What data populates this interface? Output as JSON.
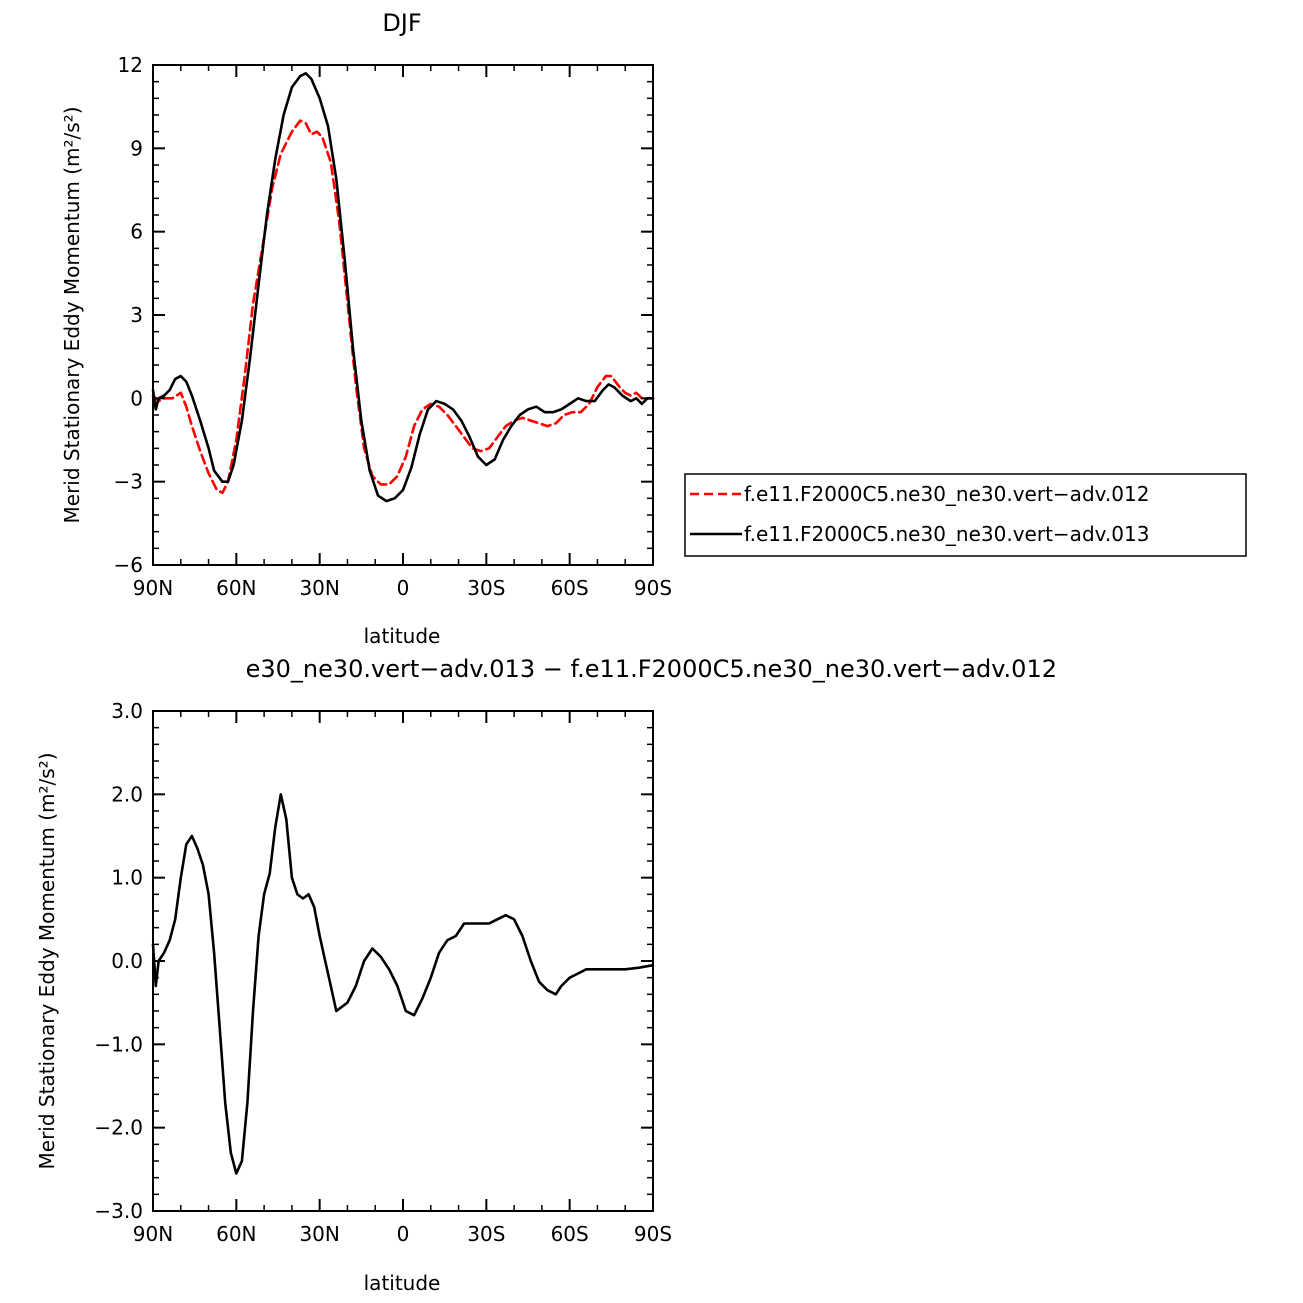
{
  "chart_data": [
    {
      "type": "line",
      "title": "DJF",
      "xlabel": "latitude",
      "ylabel": "Merid Stationary Eddy Momentum (m²/s²)",
      "xlim": [
        90,
        -90
      ],
      "ylim": [
        -6,
        12
      ],
      "x_ticks": [
        90,
        60,
        30,
        0,
        -30,
        -60,
        -90
      ],
      "x_tick_labels": [
        "90N",
        "60N",
        "30N",
        "0",
        "30S",
        "60S",
        "90S"
      ],
      "y_ticks": [
        -6,
        -3,
        0,
        3,
        6,
        9,
        12
      ],
      "y_tick_labels": [
        "−6",
        "−3",
        "0",
        "3",
        "6",
        "9",
        "12"
      ],
      "grid": false,
      "legend_position": "right",
      "series": [
        {
          "name": "f.e11.F2000C5.ne30_ne30.vert−adv.012",
          "color": "#ff0000",
          "dash": "dashed",
          "points": [
            [
              90,
              0.1
            ],
            [
              88,
              -0.1
            ],
            [
              86,
              0.0
            ],
            [
              83,
              0.0
            ],
            [
              80,
              0.2
            ],
            [
              78,
              -0.3
            ],
            [
              76,
              -1.0
            ],
            [
              73,
              -1.9
            ],
            [
              70,
              -2.7
            ],
            [
              67,
              -3.3
            ],
            [
              65,
              -3.4
            ],
            [
              63,
              -3.0
            ],
            [
              60,
              -1.5
            ],
            [
              57,
              0.8
            ],
            [
              54,
              3.4
            ],
            [
              50,
              5.8
            ],
            [
              47,
              7.6
            ],
            [
              44,
              8.8
            ],
            [
              40,
              9.6
            ],
            [
              37,
              10.0
            ],
            [
              35,
              9.9
            ],
            [
              33,
              9.5
            ],
            [
              31,
              9.6
            ],
            [
              29,
              9.4
            ],
            [
              26,
              8.5
            ],
            [
              23,
              6.4
            ],
            [
              20,
              3.5
            ],
            [
              17,
              0.5
            ],
            [
              14,
              -1.8
            ],
            [
              11,
              -2.8
            ],
            [
              8,
              -3.1
            ],
            [
              5,
              -3.1
            ],
            [
              2,
              -2.8
            ],
            [
              -1,
              -2.1
            ],
            [
              -4,
              -1.0
            ],
            [
              -7,
              -0.4
            ],
            [
              -10,
              -0.2
            ],
            [
              -13,
              -0.3
            ],
            [
              -16,
              -0.6
            ],
            [
              -19,
              -1.0
            ],
            [
              -22,
              -1.4
            ],
            [
              -25,
              -1.8
            ],
            [
              -28,
              -1.9
            ],
            [
              -31,
              -1.8
            ],
            [
              -34,
              -1.4
            ],
            [
              -37,
              -1.0
            ],
            [
              -40,
              -0.8
            ],
            [
              -43,
              -0.7
            ],
            [
              -46,
              -0.8
            ],
            [
              -49,
              -0.9
            ],
            [
              -52,
              -1.0
            ],
            [
              -55,
              -0.9
            ],
            [
              -58,
              -0.6
            ],
            [
              -61,
              -0.5
            ],
            [
              -64,
              -0.5
            ],
            [
              -67,
              -0.2
            ],
            [
              -70,
              0.4
            ],
            [
              -73,
              0.8
            ],
            [
              -75,
              0.8
            ],
            [
              -78,
              0.4
            ],
            [
              -80,
              0.2
            ],
            [
              -82,
              0.1
            ],
            [
              -84,
              0.2
            ],
            [
              -86,
              0.0
            ],
            [
              -88,
              0.0
            ],
            [
              -90,
              0.0
            ]
          ]
        },
        {
          "name": "f.e11.F2000C5.ne30_ne30.vert−adv.013",
          "color": "#000000",
          "dash": "solid",
          "points": [
            [
              90,
              0.3
            ],
            [
              89,
              -0.4
            ],
            [
              88,
              0.0
            ],
            [
              86,
              0.1
            ],
            [
              84,
              0.3
            ],
            [
              82,
              0.7
            ],
            [
              80,
              0.8
            ],
            [
              78,
              0.6
            ],
            [
              76,
              0.1
            ],
            [
              73,
              -0.8
            ],
            [
              70,
              -1.8
            ],
            [
              68,
              -2.6
            ],
            [
              65,
              -3.0
            ],
            [
              63,
              -3.0
            ],
            [
              61,
              -2.4
            ],
            [
              58,
              -0.8
            ],
            [
              55,
              1.5
            ],
            [
              52,
              4.1
            ],
            [
              49,
              6.6
            ],
            [
              46,
              8.6
            ],
            [
              43,
              10.2
            ],
            [
              40,
              11.2
            ],
            [
              37,
              11.6
            ],
            [
              35,
              11.7
            ],
            [
              33,
              11.5
            ],
            [
              30,
              10.8
            ],
            [
              27,
              9.8
            ],
            [
              24,
              7.9
            ],
            [
              21,
              5.0
            ],
            [
              18,
              1.8
            ],
            [
              15,
              -0.8
            ],
            [
              12,
              -2.6
            ],
            [
              9,
              -3.5
            ],
            [
              6,
              -3.7
            ],
            [
              3,
              -3.6
            ],
            [
              0,
              -3.3
            ],
            [
              -3,
              -2.5
            ],
            [
              -6,
              -1.3
            ],
            [
              -9,
              -0.4
            ],
            [
              -12,
              -0.1
            ],
            [
              -15,
              -0.2
            ],
            [
              -18,
              -0.4
            ],
            [
              -21,
              -0.8
            ],
            [
              -24,
              -1.4
            ],
            [
              -27,
              -2.1
            ],
            [
              -30,
              -2.4
            ],
            [
              -33,
              -2.2
            ],
            [
              -36,
              -1.5
            ],
            [
              -39,
              -1.0
            ],
            [
              -42,
              -0.6
            ],
            [
              -45,
              -0.4
            ],
            [
              -48,
              -0.3
            ],
            [
              -51,
              -0.5
            ],
            [
              -54,
              -0.5
            ],
            [
              -57,
              -0.4
            ],
            [
              -60,
              -0.2
            ],
            [
              -63,
              0.0
            ],
            [
              -66,
              -0.1
            ],
            [
              -69,
              -0.1
            ],
            [
              -72,
              0.3
            ],
            [
              -74,
              0.5
            ],
            [
              -76,
              0.4
            ],
            [
              -79,
              0.1
            ],
            [
              -82,
              -0.1
            ],
            [
              -84,
              0.0
            ],
            [
              -86,
              -0.2
            ],
            [
              -88,
              0.0
            ],
            [
              -90,
              0.0
            ]
          ]
        }
      ]
    },
    {
      "type": "line",
      "title": "e30_ne30.vert−adv.013 − f.e11.F2000C5.ne30_ne30.vert−adv.012",
      "xlabel": "latitude",
      "ylabel": "Merid Stationary Eddy Momentum (m²/s²)",
      "xlim": [
        90,
        -90
      ],
      "ylim": [
        -3,
        3
      ],
      "x_ticks": [
        90,
        60,
        30,
        0,
        -30,
        -60,
        -90
      ],
      "x_tick_labels": [
        "90N",
        "60N",
        "30N",
        "0",
        "30S",
        "60S",
        "90S"
      ],
      "y_ticks": [
        -3,
        -2,
        -1,
        0,
        1,
        2,
        3
      ],
      "y_tick_labels": [
        "−3.0",
        "−2.0",
        "−1.0",
        "0.0",
        "1.0",
        "2.0",
        "3.0"
      ],
      "grid": false,
      "series": [
        {
          "color": "#000000",
          "dash": "solid",
          "points": [
            [
              90,
              0.2
            ],
            [
              89,
              -0.3
            ],
            [
              88,
              0.0
            ],
            [
              86,
              0.1
            ],
            [
              84,
              0.25
            ],
            [
              82,
              0.5
            ],
            [
              80,
              1.0
            ],
            [
              78,
              1.4
            ],
            [
              76,
              1.5
            ],
            [
              74,
              1.35
            ],
            [
              72,
              1.15
            ],
            [
              70,
              0.8
            ],
            [
              68,
              0.1
            ],
            [
              66,
              -0.8
            ],
            [
              64,
              -1.7
            ],
            [
              62,
              -2.3
            ],
            [
              60,
              -2.55
            ],
            [
              58,
              -2.4
            ],
            [
              56,
              -1.7
            ],
            [
              54,
              -0.6
            ],
            [
              52,
              0.3
            ],
            [
              50,
              0.8
            ],
            [
              48,
              1.05
            ],
            [
              46,
              1.6
            ],
            [
              44,
              2.0
            ],
            [
              42,
              1.7
            ],
            [
              40,
              1.0
            ],
            [
              38,
              0.8
            ],
            [
              36,
              0.75
            ],
            [
              34,
              0.8
            ],
            [
              32,
              0.65
            ],
            [
              30,
              0.3
            ],
            [
              28,
              0.0
            ],
            [
              26,
              -0.3
            ],
            [
              24,
              -0.6
            ],
            [
              22,
              -0.55
            ],
            [
              20,
              -0.5
            ],
            [
              17,
              -0.3
            ],
            [
              14,
              0.0
            ],
            [
              11,
              0.15
            ],
            [
              8,
              0.05
            ],
            [
              5,
              -0.1
            ],
            [
              2,
              -0.3
            ],
            [
              -1,
              -0.6
            ],
            [
              -4,
              -0.65
            ],
            [
              -7,
              -0.45
            ],
            [
              -10,
              -0.2
            ],
            [
              -13,
              0.1
            ],
            [
              -16,
              0.25
            ],
            [
              -19,
              0.3
            ],
            [
              -22,
              0.45
            ],
            [
              -25,
              0.45
            ],
            [
              -28,
              0.45
            ],
            [
              -31,
              0.45
            ],
            [
              -34,
              0.5
            ],
            [
              -37,
              0.55
            ],
            [
              -40,
              0.5
            ],
            [
              -43,
              0.3
            ],
            [
              -46,
              0.0
            ],
            [
              -49,
              -0.25
            ],
            [
              -52,
              -0.35
            ],
            [
              -55,
              -0.4
            ],
            [
              -57,
              -0.3
            ],
            [
              -60,
              -0.2
            ],
            [
              -63,
              -0.15
            ],
            [
              -66,
              -0.1
            ],
            [
              -70,
              -0.1
            ],
            [
              -75,
              -0.1
            ],
            [
              -80,
              -0.1
            ],
            [
              -85,
              -0.08
            ],
            [
              -90,
              -0.05
            ]
          ]
        }
      ]
    }
  ]
}
